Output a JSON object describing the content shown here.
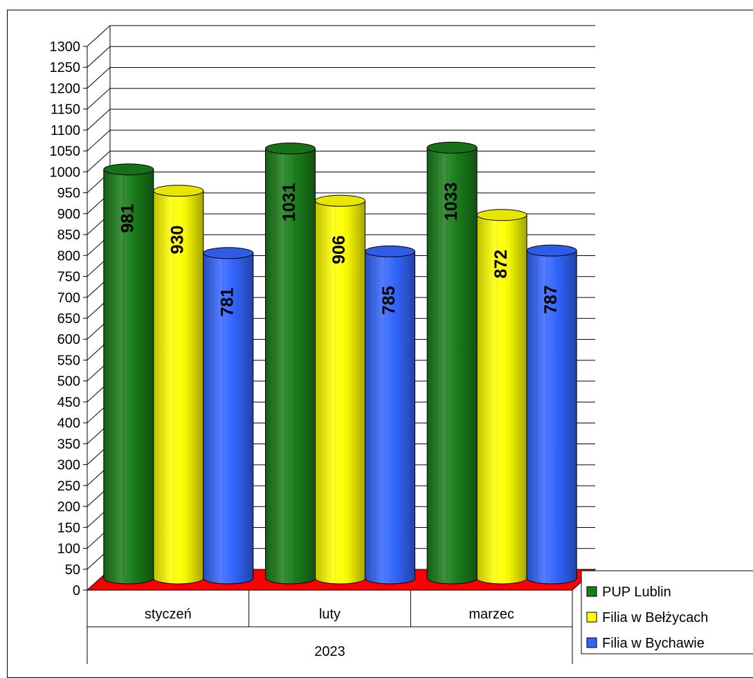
{
  "chart_data": {
    "type": "bar",
    "categories": [
      "styczeń",
      "luty",
      "marzec"
    ],
    "group_label": "2023",
    "series": [
      {
        "name": "PUP Lublin",
        "color": "#1a7d1a",
        "values": [
          981,
          1031,
          1033
        ]
      },
      {
        "name": "Filia w Bełżycach",
        "color": "#ffff00",
        "values": [
          930,
          906,
          872
        ]
      },
      {
        "name": "Filia w Bychawie",
        "color": "#3366ff",
        "values": [
          781,
          785,
          787
        ]
      }
    ],
    "ylim": [
      0,
      1300
    ],
    "ytick_step": 50,
    "floor_color": "#ff0000",
    "grid": true,
    "legend_position": "bottom-right"
  }
}
